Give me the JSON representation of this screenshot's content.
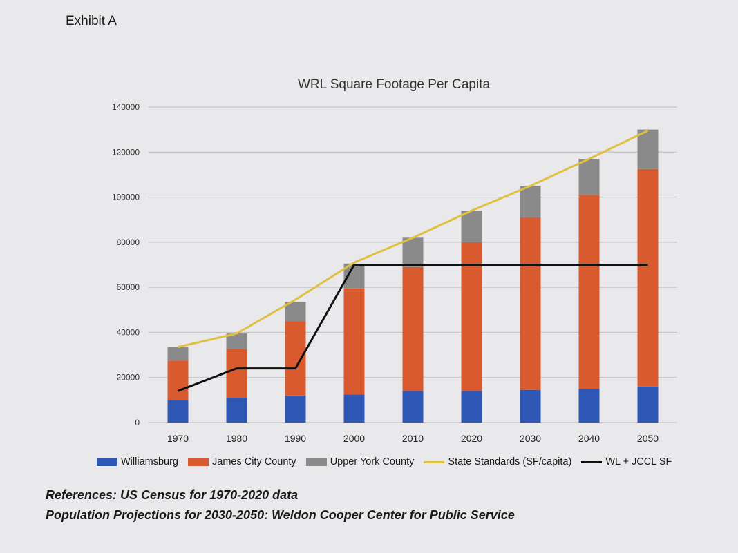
{
  "exhibit_label": "Exhibit A",
  "references": {
    "line1": "References: US Census for 1970-2020 data",
    "line2": "Population Projections for 2030-2050: Weldon Cooper Center for Public Service"
  },
  "chart_data": {
    "type": "bar",
    "stacked": true,
    "title": "WRL Square Footage Per Capita",
    "xlabel": "",
    "ylabel": "",
    "ylim": [
      0,
      140000
    ],
    "yticks": [
      0,
      20000,
      40000,
      60000,
      80000,
      100000,
      120000,
      140000
    ],
    "grid": true,
    "legend_position": "bottom",
    "categories": [
      "1970",
      "1980",
      "1990",
      "2000",
      "2010",
      "2020",
      "2030",
      "2040",
      "2050"
    ],
    "series": [
      {
        "name": "Williamsburg",
        "type": "bar",
        "color": "#2f58b6",
        "values": [
          10000,
          11000,
          12000,
          12500,
          14000,
          14000,
          14500,
          15000,
          16000
        ]
      },
      {
        "name": "James City County",
        "type": "bar",
        "color": "#d95a2f",
        "values": [
          17500,
          21500,
          33000,
          47000,
          55000,
          66000,
          76500,
          86000,
          96500
        ]
      },
      {
        "name": "Upper York County",
        "type": "bar",
        "color": "#8a8a8a",
        "values": [
          6000,
          7000,
          8500,
          11000,
          13000,
          14000,
          14000,
          16000,
          17500
        ]
      },
      {
        "name": "State Standards (SF/capita)",
        "type": "line",
        "color": "#e0c040",
        "values": [
          33500,
          39500,
          54500,
          71000,
          82000,
          94000,
          105000,
          117000,
          129500
        ]
      },
      {
        "name": "WL + JCCL SF",
        "type": "line",
        "color": "#111111",
        "values": [
          14000,
          24000,
          24000,
          70000,
          70000,
          70000,
          70000,
          70000,
          70000
        ]
      }
    ]
  }
}
